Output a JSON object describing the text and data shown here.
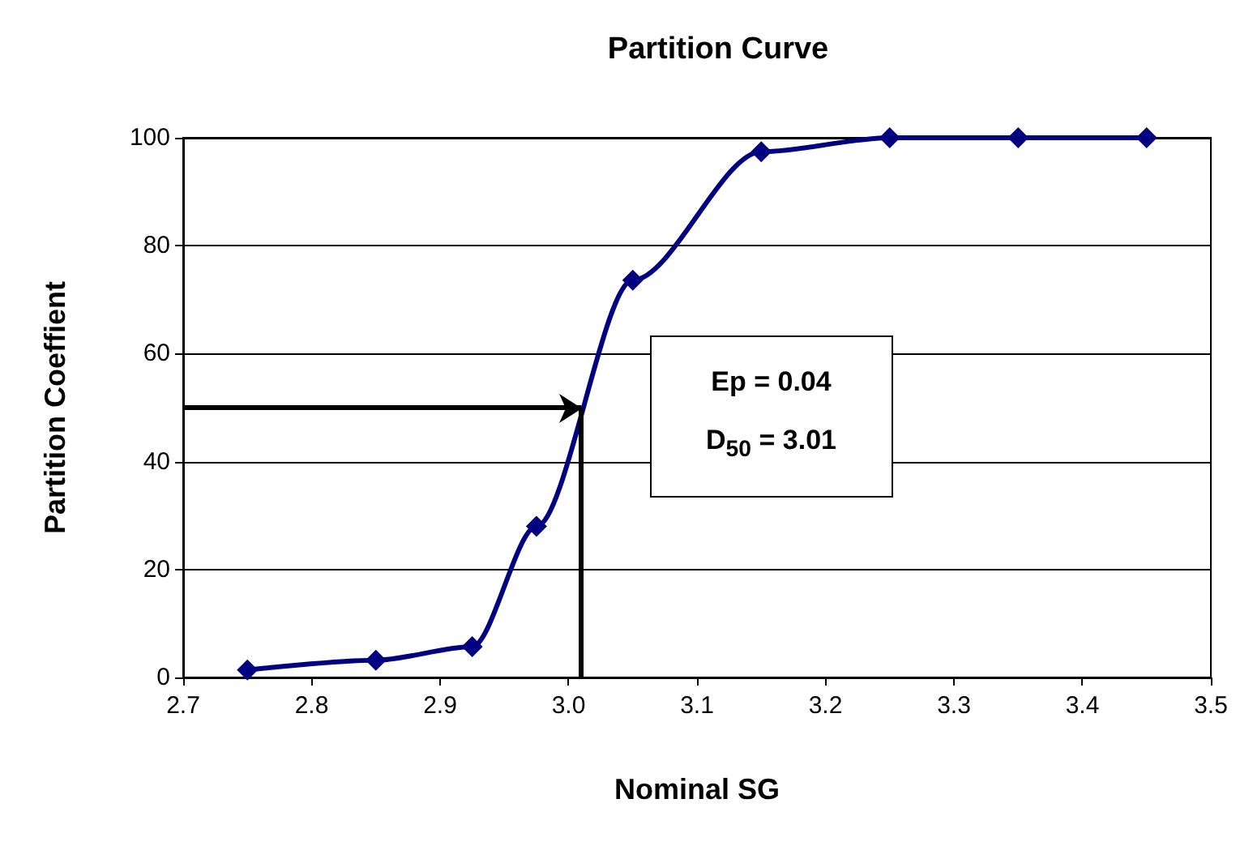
{
  "chart_data": {
    "type": "line",
    "title": "Partition Curve",
    "xlabel": "Nominal SG",
    "ylabel": "Partition Coeffient",
    "x": [
      2.75,
      2.85,
      2.925,
      2.975,
      3.05,
      3.15,
      3.25,
      3.35,
      3.45
    ],
    "series": [
      {
        "color": "#000080",
        "values": [
          1.4,
          3.2,
          5.7,
          28,
          73.6,
          97.4,
          100,
          100,
          100
        ]
      }
    ],
    "xlim": [
      2.7,
      3.5
    ],
    "xticks": [
      2.7,
      2.8,
      2.9,
      {
        "value": 3,
        "label": "3.0"
      },
      3.1,
      3.2,
      3.3,
      3.4,
      3.5
    ],
    "ylim": [
      0,
      100
    ],
    "yticks": [
      0,
      20,
      40,
      60,
      80,
      100
    ],
    "grid": "y",
    "marker": "diamond",
    "line_style": "solid",
    "ref_lines": [
      {
        "axis": "x",
        "value": 3.01
      },
      {
        "axis": "y",
        "value": 50
      }
    ],
    "annotations": [
      "Ep = 0.04\nD$_{50}$ = 3.01"
    ]
  }
}
